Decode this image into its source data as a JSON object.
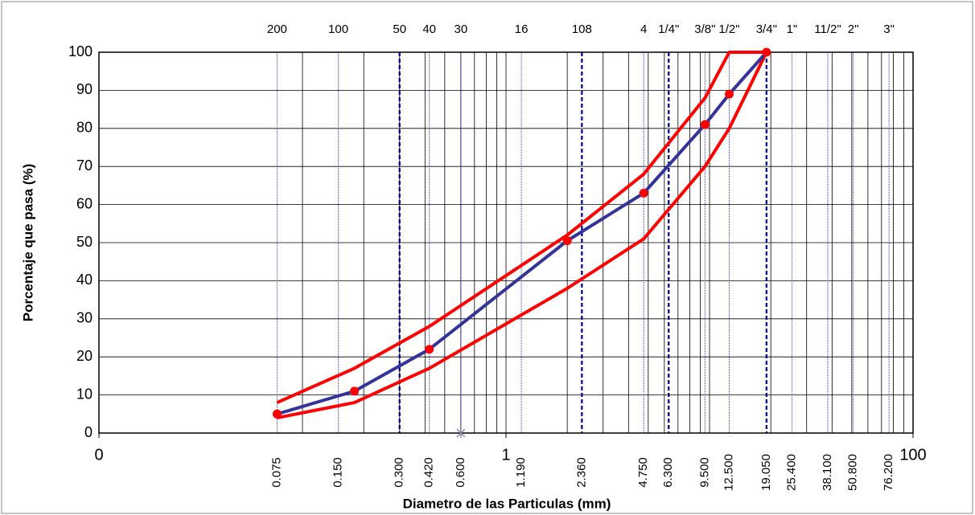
{
  "chart_data": {
    "type": "line",
    "xlabel": "Diametro de las Particulas (mm)",
    "ylabel": "Porcentaje que pasa (%)",
    "log_x": true,
    "xlim": [
      0.01,
      100
    ],
    "ylim": [
      0,
      100
    ],
    "xticks": [
      {
        "value": 0.01,
        "label": "0"
      },
      1,
      100
    ],
    "yticks": [
      0,
      10,
      20,
      30,
      40,
      50,
      60,
      70,
      80,
      90,
      100
    ],
    "grid": true,
    "sieves": [
      {
        "value": 0.075,
        "label": "0.075",
        "mesh": "200"
      },
      {
        "value": 0.15,
        "label": "0.150",
        "mesh": "100"
      },
      {
        "value": 0.3,
        "label": "0.300",
        "mesh": "50"
      },
      {
        "value": 0.42,
        "label": "0.420",
        "mesh": "40"
      },
      {
        "value": 0.6,
        "label": "0.600",
        "mesh": "30"
      },
      {
        "value": 1.19,
        "label": "1.190",
        "mesh": "16"
      },
      {
        "value": 2.36,
        "label": "2.360",
        "mesh": "108"
      },
      {
        "value": 4.75,
        "label": "4.750",
        "mesh": "4"
      },
      {
        "value": 6.3,
        "label": "6.300",
        "mesh": "1/4\""
      },
      {
        "value": 9.5,
        "label": "9.500",
        "mesh": "3/8\""
      },
      {
        "value": 12.5,
        "label": "12.500",
        "mesh": "1/2\""
      },
      {
        "value": 19.05,
        "label": "19.050",
        "mesh": "3/4\""
      },
      {
        "value": 25.4,
        "label": "25.400",
        "mesh": "1\""
      },
      {
        "value": 38.1,
        "label": "38.100",
        "mesh": "11/2\""
      },
      {
        "value": 50.8,
        "label": "50.800",
        "mesh": "2\""
      },
      {
        "value": 76.2,
        "label": "76.200",
        "mesh": "3\""
      }
    ],
    "dashed_sieves": [
      0.3,
      2.36,
      6.3,
      19.05
    ],
    "series": [
      {
        "color": "#ff0000",
        "x": [
          0.075,
          0.18,
          0.42,
          2.0,
          4.75,
          9.5,
          12.5,
          19.05
        ],
        "values": [
          8,
          17,
          28,
          52,
          68,
          88,
          100,
          100
        ],
        "markers": false
      },
      {
        "color": "#ff0000",
        "x": [
          0.075,
          0.18,
          0.42,
          2.0,
          4.75,
          9.5,
          12.5,
          19.05
        ],
        "values": [
          4,
          8,
          17,
          38,
          51,
          70,
          80,
          100
        ],
        "markers": false
      },
      {
        "color": "#333399",
        "marker_color": "#ff0000",
        "x": [
          0.075,
          0.18,
          0.42,
          2.0,
          4.75,
          9.5,
          12.5,
          19.05
        ],
        "values": [
          5,
          11,
          22,
          50.5,
          63,
          81,
          89,
          100
        ],
        "markers": true
      }
    ],
    "extra_point": {
      "x": 0.6,
      "value": 0,
      "color": "#8888aa"
    }
  }
}
